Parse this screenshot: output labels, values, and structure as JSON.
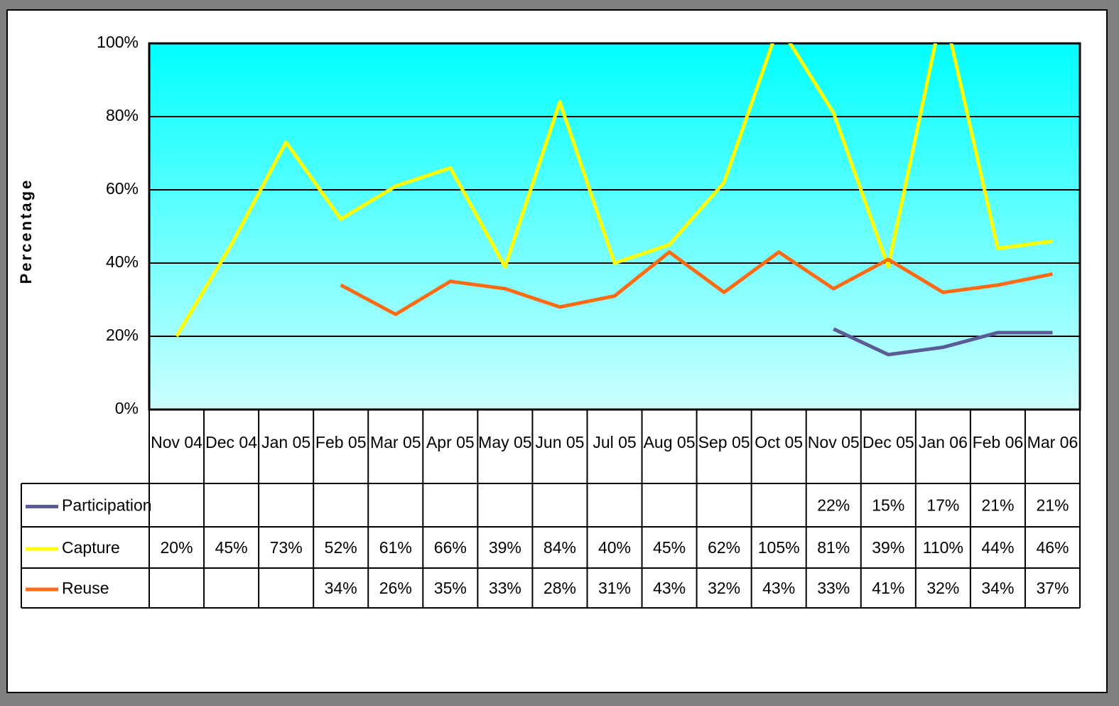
{
  "chart_data": {
    "type": "line",
    "y_label": "Percentage",
    "categories": [
      "Nov 04",
      "Dec 04",
      "Jan 05",
      "Feb 05",
      "Mar 05",
      "Apr 05",
      "May 05",
      "Jun 05",
      "Jul 05",
      "Aug 05",
      "Sep 05",
      "Oct 05",
      "Nov 05",
      "Dec 05",
      "Jan 06",
      "Feb 06",
      "Mar 06"
    ],
    "series": [
      {
        "name": "Participation",
        "color": "#5b5b96",
        "values": [
          null,
          null,
          null,
          null,
          null,
          null,
          null,
          null,
          null,
          null,
          null,
          null,
          22,
          15,
          17,
          21,
          21
        ],
        "value_labels": [
          null,
          null,
          null,
          null,
          null,
          null,
          null,
          null,
          null,
          null,
          null,
          null,
          "22%",
          "15%",
          "17%",
          "21%",
          "21%"
        ]
      },
      {
        "name": "Capture",
        "color": "#ffff00",
        "values": [
          20,
          45,
          73,
          52,
          61,
          66,
          39,
          84,
          40,
          45,
          62,
          105,
          81,
          39,
          110,
          44,
          46
        ],
        "value_labels": [
          "20%",
          "45%",
          "73%",
          "52%",
          "61%",
          "66%",
          "39%",
          "84%",
          "40%",
          "45%",
          "62%",
          "105%",
          "81%",
          "39%",
          "110%",
          "44%",
          "46%"
        ]
      },
      {
        "name": "Reuse",
        "color": "#ff6a13",
        "values": [
          null,
          null,
          null,
          34,
          26,
          35,
          33,
          28,
          31,
          43,
          32,
          43,
          33,
          41,
          32,
          34,
          37
        ],
        "value_labels": [
          null,
          null,
          null,
          "34%",
          "26%",
          "35%",
          "33%",
          "28%",
          "31%",
          "43%",
          "32%",
          "43%",
          "33%",
          "41%",
          "32%",
          "34%",
          "37%"
        ]
      }
    ],
    "ylim": [
      0,
      100
    ],
    "yticks": [
      {
        "value": 0,
        "label": "0%"
      },
      {
        "value": 20,
        "label": "20%"
      },
      {
        "value": 40,
        "label": "40%"
      },
      {
        "value": 60,
        "label": "60%"
      },
      {
        "value": 80,
        "label": "80%"
      },
      {
        "value": 100,
        "label": "100%"
      }
    ],
    "grid": true
  }
}
